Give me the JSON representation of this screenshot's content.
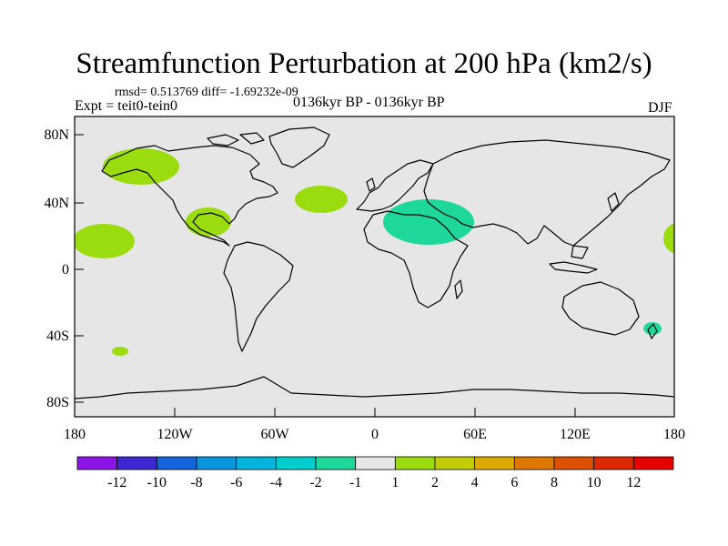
{
  "header": {
    "title": "Streamfunction Perturbation at 200 hPa (km2/s)",
    "stats": "rmsd= 0.513769 diff= -1.69232e-09",
    "experiment": "Expt = teit0-tein0",
    "period": "0136kyr BP - 0136kyr BP",
    "season": "DJF"
  },
  "map": {
    "lat_labels": [
      "80N",
      "40N",
      "0",
      "40S",
      "80S"
    ],
    "lon_labels": [
      "180",
      "120W",
      "60W",
      "0",
      "60E",
      "120E",
      "180"
    ],
    "background_color": "#e6e6e6",
    "anomalies": [
      {
        "region": "North Pacific / Alaska",
        "lon": -143,
        "lat": 64,
        "level": 1
      },
      {
        "region": "North Atlantic",
        "lon": -40,
        "lat": 44,
        "level": 1
      },
      {
        "region": "Gulf of Mexico",
        "lon": -103,
        "lat": 28,
        "level": 1
      },
      {
        "region": "Central Pacific (west)",
        "lon": -166,
        "lat": 19,
        "level": 1
      },
      {
        "region": "Central Pacific (east edge)",
        "lon": 178,
        "lat": 19,
        "level": 1
      },
      {
        "region": "Middle East",
        "lon": 33,
        "lat": 30,
        "level": -1
      },
      {
        "region": "South Pacific",
        "lon": -157,
        "lat": -51,
        "level": 1
      },
      {
        "region": "New Zealand",
        "lon": 168,
        "lat": -38,
        "level": -1
      }
    ]
  },
  "colorbar": {
    "labels": [
      "-12",
      "-10",
      "-8",
      "-6",
      "-4",
      "-2",
      "-1",
      "1",
      "2",
      "4",
      "6",
      "8",
      "10",
      "12"
    ],
    "colors": [
      "#8c14e8",
      "#3c28d2",
      "#1464dc",
      "#0a96dc",
      "#00b4dc",
      "#00cdcd",
      "#1ed79b",
      "#e6e6e6",
      "#9bdc0f",
      "#c3cd05",
      "#dcaa00",
      "#dc7800",
      "#dc5000",
      "#dc2800",
      "#e60000"
    ]
  }
}
